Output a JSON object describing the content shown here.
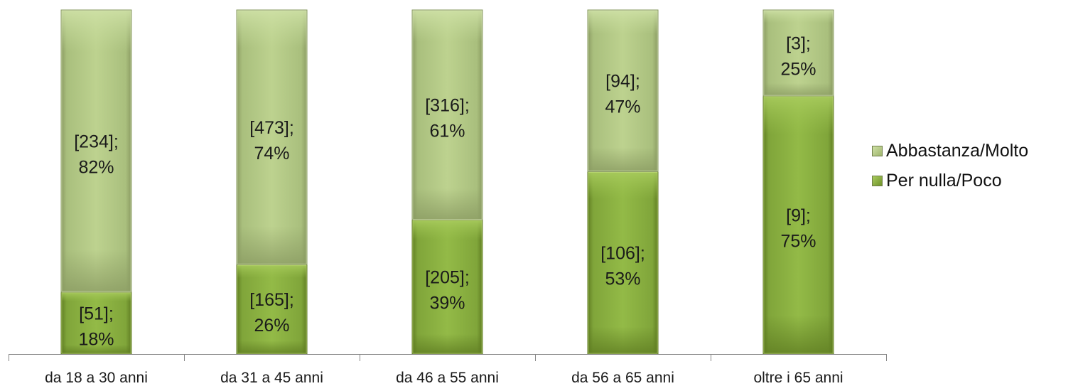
{
  "chart_data": {
    "type": "bar",
    "stacked": "percent",
    "title": "",
    "xlabel": "",
    "ylabel": "",
    "categories": [
      "da 18 a 30 anni",
      "da 31 a 45 anni",
      "da 46 a 55 anni",
      "da 56 a 65 anni",
      "oltre i 65 anni"
    ],
    "series": [
      {
        "name": "Per nulla/Poco",
        "counts": [
          51,
          165,
          205,
          106,
          9
        ],
        "values": [
          18,
          26,
          39,
          53,
          75
        ],
        "labels": [
          [
            "[51];",
            "18%"
          ],
          [
            "[165];",
            "26%"
          ],
          [
            "[205];",
            "39%"
          ],
          [
            "[106];",
            "53%"
          ],
          [
            "[9];",
            "75%"
          ]
        ],
        "color": "#8db33b"
      },
      {
        "name": "Abbastanza/Molto",
        "counts": [
          234,
          473,
          316,
          94,
          3
        ],
        "values": [
          82,
          74,
          61,
          47,
          25
        ],
        "labels": [
          [
            "[234];",
            "82%"
          ],
          [
            "[473];",
            "74%"
          ],
          [
            "[316];",
            "61%"
          ],
          [
            "[94];",
            "47%"
          ],
          [
            "[3];",
            "25%"
          ]
        ],
        "color": "#b6cc84"
      }
    ],
    "ylim": [
      0,
      100
    ],
    "legend_position": "right",
    "grid": false
  }
}
